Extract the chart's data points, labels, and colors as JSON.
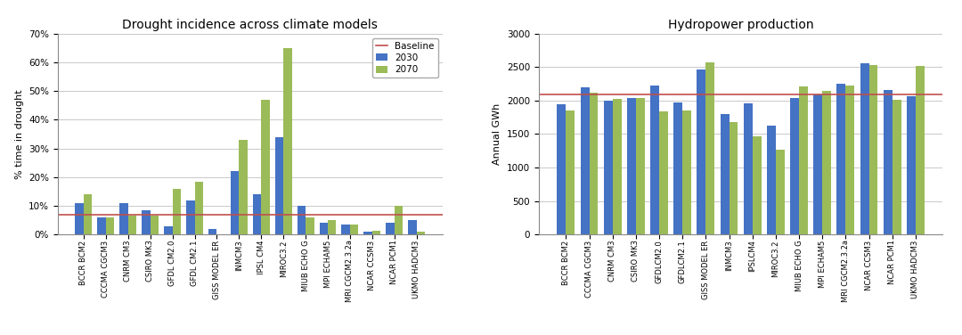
{
  "drought_models": [
    "BCCR BCM2",
    "CCCMA CGCM3",
    "CNRM CM3",
    "CSIRO MK3",
    "GFDL CM2.0",
    "GFDL CM2.1",
    "GISS MODEL ER",
    "INMCM3",
    "IPSL CM4",
    "MIROC3.2",
    "MIUB ECHO G",
    "MPI ECHAM5",
    "MRI CGCM2.3.2a",
    "NCAR CCSM3",
    "NCAR PCM1",
    "UKMO HADCM3"
  ],
  "drought_2030": [
    0.11,
    0.06,
    0.11,
    0.085,
    0.03,
    0.12,
    0.02,
    0.22,
    0.14,
    0.34,
    0.1,
    0.04,
    0.035,
    0.01,
    0.04,
    0.05
  ],
  "drought_2070": [
    0.14,
    0.06,
    0.065,
    0.065,
    0.16,
    0.185,
    0.0,
    0.33,
    0.47,
    0.65,
    0.06,
    0.05,
    0.035,
    0.012,
    0.1,
    0.01
  ],
  "drought_baseline": 0.07,
  "hydro_models": [
    "BCCR BCM2",
    "CCCMA CGCM3",
    "CNRM CM3",
    "CSIRO MK3",
    "GFDLCM2.0",
    "GFDLCM2.1",
    "GISS MODEL ER",
    "INMCM3",
    "IPSLCM4",
    "MIROC3.2",
    "MIUB ECHO G",
    "MPI ECHAM5",
    "MRI CGCM2.3.2a",
    "NCAR CCSM3",
    "NCAR PCM1",
    "UKMO HADCM3"
  ],
  "hydro_2030": [
    1950,
    2200,
    2000,
    2040,
    2230,
    1970,
    2460,
    1800,
    1960,
    1620,
    2040,
    2090,
    2250,
    2560,
    2160,
    2060
  ],
  "hydro_2070": [
    1850,
    2120,
    2020,
    2040,
    1835,
    1855,
    2570,
    1680,
    1460,
    1260,
    2210,
    2140,
    2230,
    2530,
    2010,
    2520
  ],
  "hydro_baseline": 2090,
  "color_2030": "#4472C4",
  "color_2070": "#9BBB59",
  "color_baseline": "#C0504D",
  "drought_title": "Drought incidence across climate models",
  "hydro_title": "Hydropower production",
  "drought_ylabel": "% time in drought",
  "hydro_ylabel": "Annual GWh",
  "drought_ylim": [
    0,
    0.7
  ],
  "hydro_ylim": [
    0,
    3000
  ],
  "legend_labels": [
    "2030",
    "2070",
    "Baseline"
  ]
}
